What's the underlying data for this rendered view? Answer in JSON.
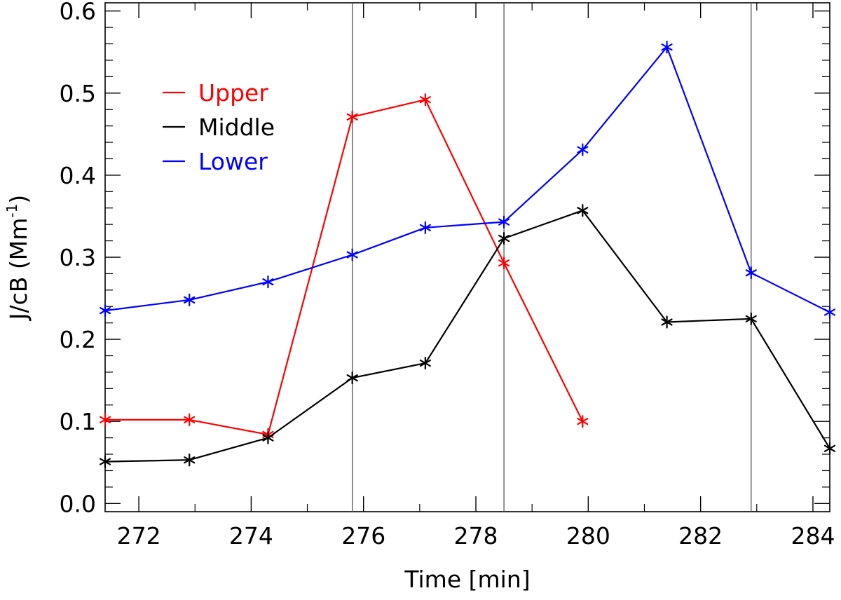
{
  "chart_data": {
    "type": "line",
    "xlabel": "Time [min]",
    "ylabel_main": "J/cB (Mm",
    "ylabel_sup": "-1",
    "ylabel_close": ")",
    "xlim": [
      271.4,
      284.3
    ],
    "ylim": [
      -0.01,
      0.61
    ],
    "x_ticks": [
      272,
      274,
      276,
      278,
      280,
      282,
      284
    ],
    "x_tick_labels": [
      "272",
      "274",
      "276",
      "278",
      "280",
      "282",
      "284"
    ],
    "y_ticks": [
      0.0,
      0.1,
      0.2,
      0.3,
      0.4,
      0.5,
      0.6
    ],
    "y_tick_labels": [
      "0.0",
      "0.1",
      "0.2",
      "0.3",
      "0.4",
      "0.5",
      "0.6"
    ],
    "vertical_lines": [
      275.8,
      278.5,
      282.9
    ],
    "legend_position": "upper-left",
    "marker": "asterisk",
    "series": [
      {
        "name": "Upper",
        "color": "#ff0000",
        "x": [
          271.4,
          272.9,
          274.3,
          275.8,
          277.1,
          278.5,
          279.9
        ],
        "y": [
          0.102,
          0.102,
          0.084,
          0.471,
          0.492,
          0.293,
          0.1
        ]
      },
      {
        "name": "Middle",
        "color": "#000000",
        "x": [
          271.4,
          272.9,
          274.3,
          275.8,
          277.1,
          278.5,
          279.9,
          281.4,
          282.9,
          284.3
        ],
        "y": [
          0.051,
          0.053,
          0.08,
          0.153,
          0.171,
          0.323,
          0.357,
          0.221,
          0.225,
          0.067
        ]
      },
      {
        "name": "Lower",
        "color": "#0000ff",
        "x": [
          271.4,
          272.9,
          274.3,
          275.8,
          277.1,
          278.5,
          279.9,
          281.4,
          282.9,
          284.3
        ],
        "y": [
          0.235,
          0.248,
          0.27,
          0.303,
          0.336,
          0.343,
          0.431,
          0.556,
          0.281,
          0.233
        ]
      }
    ]
  }
}
